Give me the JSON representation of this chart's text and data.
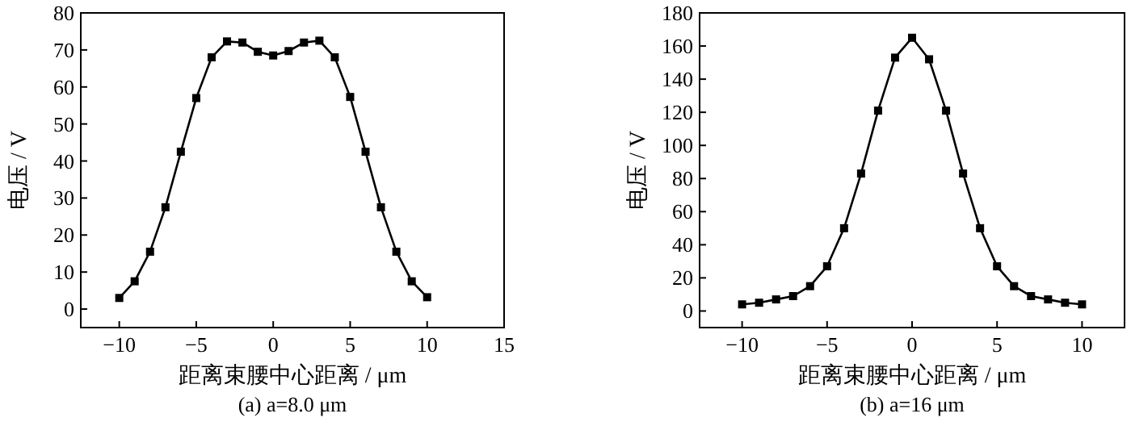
{
  "chart_data": [
    {
      "type": "line",
      "xlabel": "距离束腰中心距离 / μm",
      "ylabel": "电压 / V",
      "annotations": [
        "(a) a=8.0 μm"
      ],
      "marker": "square",
      "line_style": "solid",
      "grid": false,
      "xlim": [
        -12.5,
        15
      ],
      "xticks": [
        -10,
        -5,
        0,
        5,
        10,
        15
      ],
      "ylim": [
        -5,
        80
      ],
      "yticks": [
        0,
        10,
        20,
        30,
        40,
        50,
        60,
        70,
        80
      ],
      "x": [
        -10,
        -9,
        -8,
        -7,
        -6,
        -5,
        -4,
        -3,
        -2,
        -1,
        0,
        1,
        2,
        3,
        4,
        5,
        6,
        7,
        8,
        9,
        10
      ],
      "series": [
        {
          "color": "#000000",
          "values": [
            3,
            7.5,
            15.5,
            27.5,
            42.5,
            57,
            68,
            72.3,
            72,
            69.5,
            68.5,
            69.7,
            72,
            72.5,
            68,
            57.3,
            42.5,
            27.5,
            15.5,
            7.5,
            3.2
          ]
        }
      ]
    },
    {
      "type": "line",
      "xlabel": "距离束腰中心距离 / μm",
      "ylabel": "电压 / V",
      "annotations": [
        "(b) a=16 μm"
      ],
      "marker": "square",
      "line_style": "solid",
      "grid": false,
      "xlim": [
        -12.5,
        12.5
      ],
      "xticks": [
        -10,
        -5,
        0,
        5,
        10
      ],
      "ylim": [
        -10,
        180
      ],
      "yticks": [
        0,
        20,
        40,
        60,
        80,
        100,
        120,
        140,
        160,
        180
      ],
      "x": [
        -10,
        -9,
        -8,
        -7,
        -6,
        -5,
        -4,
        -3,
        -2,
        -1,
        0,
        1,
        2,
        3,
        4,
        5,
        6,
        7,
        8,
        9,
        10
      ],
      "series": [
        {
          "color": "#000000",
          "values": [
            4,
            5,
            7,
            9,
            15,
            27,
            50,
            83,
            121,
            153,
            165,
            152,
            121,
            83,
            50,
            27,
            15,
            9,
            7,
            5,
            4
          ]
        }
      ]
    }
  ]
}
